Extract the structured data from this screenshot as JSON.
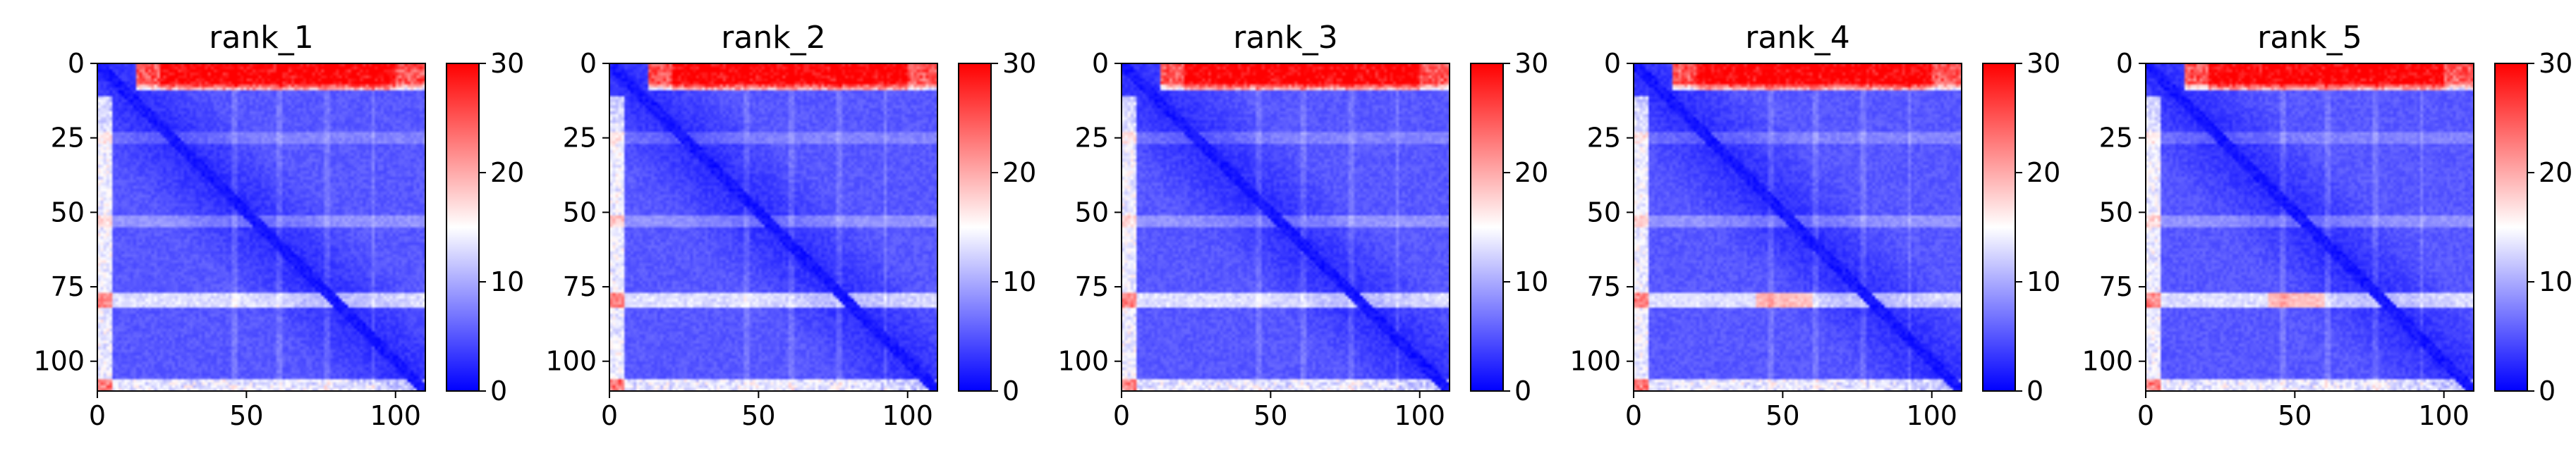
{
  "colormap": {
    "name": "bwr",
    "low": "#0000ff",
    "mid": "#ffffff",
    "high": "#ff0000"
  },
  "chart_data": [
    {
      "type": "heatmap",
      "title": "rank_1",
      "n": 110,
      "xticks": [
        0,
        50,
        100
      ],
      "yticks": [
        0,
        25,
        50,
        75,
        100
      ],
      "colorbar": {
        "min": 0,
        "max": 30,
        "ticks": [
          0,
          10,
          20,
          30
        ]
      }
    },
    {
      "type": "heatmap",
      "title": "rank_2",
      "n": 110,
      "xticks": [
        0,
        50,
        100
      ],
      "yticks": [
        0,
        25,
        50,
        75,
        100
      ],
      "colorbar": {
        "min": 0,
        "max": 30,
        "ticks": [
          0,
          10,
          20,
          30
        ]
      }
    },
    {
      "type": "heatmap",
      "title": "rank_3",
      "n": 110,
      "xticks": [
        0,
        50,
        100
      ],
      "yticks": [
        0,
        25,
        50,
        75,
        100
      ],
      "colorbar": {
        "min": 0,
        "max": 30,
        "ticks": [
          0,
          10,
          20,
          30
        ]
      }
    },
    {
      "type": "heatmap",
      "title": "rank_4",
      "n": 110,
      "xticks": [
        0,
        50,
        100
      ],
      "yticks": [
        0,
        25,
        50,
        75,
        100
      ],
      "colorbar": {
        "min": 0,
        "max": 30,
        "ticks": [
          0,
          10,
          20,
          30
        ]
      }
    },
    {
      "type": "heatmap",
      "title": "rank_5",
      "n": 110,
      "xticks": [
        0,
        50,
        100
      ],
      "yticks": [
        0,
        25,
        50,
        75,
        100
      ],
      "colorbar": {
        "min": 0,
        "max": 30,
        "ticks": [
          0,
          10,
          20,
          30
        ]
      }
    }
  ]
}
